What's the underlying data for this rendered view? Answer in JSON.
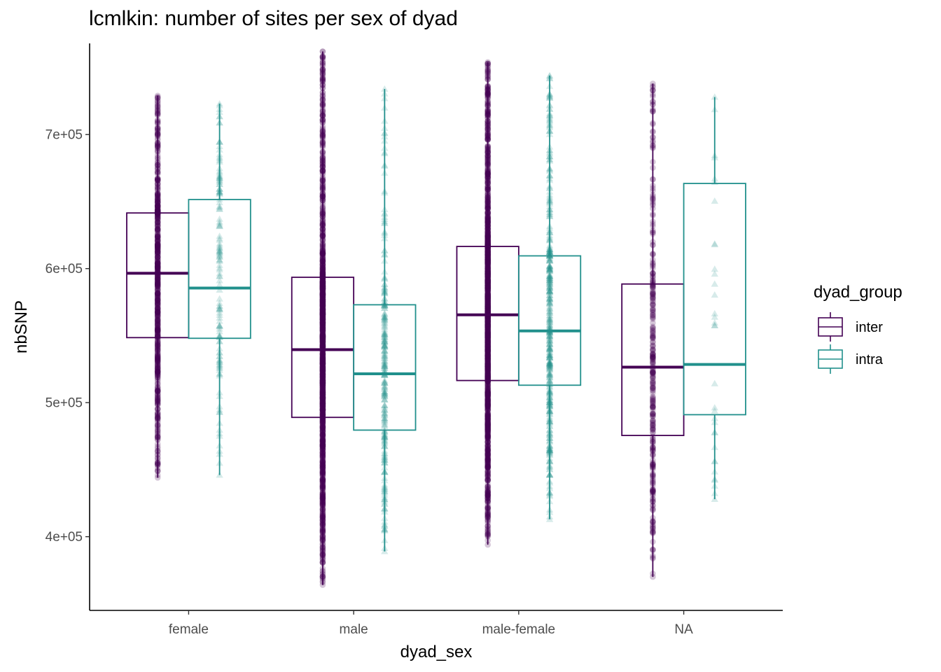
{
  "title": "lcmlkin: number of sites per sex of dyad",
  "chart_data": {
    "type": "boxplot",
    "title": "lcmlkin: number of sites per sex of dyad",
    "xlabel": "dyad_sex",
    "ylabel": "nbSNP",
    "categories": [
      "female",
      "male",
      "male-female",
      "NA"
    ],
    "ylim": [
      345000,
      768000
    ],
    "yticks": [
      400000,
      500000,
      600000,
      700000
    ],
    "ytick_labels": [
      "4e+05",
      "5e+05",
      "6e+05",
      "7e+05"
    ],
    "legend": {
      "title": "dyad_group",
      "position": "right"
    },
    "grid": false,
    "series": [
      {
        "name": "inter",
        "color": "#440154",
        "point_shape": "circle",
        "boxes": [
          {
            "category": "female",
            "min": 444000,
            "q1": 548500,
            "median": 596500,
            "q3": 641500,
            "max": 729000,
            "n_points": 700
          },
          {
            "category": "male",
            "min": 364000,
            "q1": 489000,
            "median": 539500,
            "q3": 593500,
            "max": 762000,
            "n_points": 1400
          },
          {
            "category": "male-female",
            "min": 394000,
            "q1": 516500,
            "median": 565500,
            "q3": 616500,
            "max": 754000,
            "n_points": 1600
          },
          {
            "category": "NA",
            "min": 370000,
            "q1": 475500,
            "median": 526500,
            "q3": 588500,
            "max": 738000,
            "n_points": 320
          }
        ]
      },
      {
        "name": "intra",
        "color": "#21908C",
        "point_shape": "triangle",
        "boxes": [
          {
            "category": "female",
            "min": 446000,
            "q1": 548000,
            "median": 585500,
            "q3": 651500,
            "max": 723000,
            "n_points": 140
          },
          {
            "category": "male",
            "min": 389000,
            "q1": 479500,
            "median": 521500,
            "q3": 573000,
            "max": 734000,
            "n_points": 260
          },
          {
            "category": "male-female",
            "min": 413000,
            "q1": 513000,
            "median": 553500,
            "q3": 609500,
            "max": 744000,
            "n_points": 420
          },
          {
            "category": "NA",
            "min": 428000,
            "q1": 491000,
            "median": 528500,
            "q3": 663500,
            "max": 728000,
            "n_points": 34
          }
        ]
      }
    ]
  }
}
